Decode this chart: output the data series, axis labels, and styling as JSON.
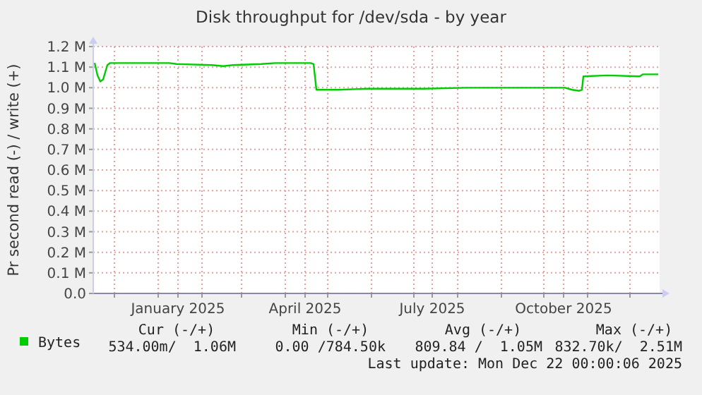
{
  "chart_data": {
    "type": "line",
    "title": "Disk throughput for /dev/sda - by year",
    "ylabel": "Pr second read (-) / write (+)",
    "x": [
      "2024-11-17",
      "2024-11-19",
      "2024-11-21",
      "2024-11-23",
      "2024-11-26",
      "2024-11-28",
      "2024-12-20",
      "2025-01-09",
      "2025-01-14",
      "2025-02-08",
      "2025-02-16",
      "2025-02-23",
      "2025-03-15",
      "2025-03-25",
      "2025-04-19",
      "2025-04-21",
      "2025-04-23",
      "2025-05-09",
      "2025-05-29",
      "2025-07-08",
      "2025-08-07",
      "2025-09-06",
      "2025-10-16",
      "2025-10-21",
      "2025-10-26",
      "2025-10-28",
      "2025-10-29",
      "2025-11-15",
      "2025-12-08",
      "2025-12-10",
      "2025-12-21"
    ],
    "series": [
      {
        "name": "Bytes",
        "color": "#00cc00",
        "values": [
          1120000,
          1060000,
          1030000,
          1040000,
          1110000,
          1120000,
          1120000,
          1120000,
          1115000,
          1110000,
          1105000,
          1110000,
          1115000,
          1120000,
          1120000,
          1115000,
          990000,
          990000,
          995000,
          995000,
          1000000,
          1000000,
          1000000,
          990000,
          985000,
          990000,
          1055000,
          1060000,
          1055000,
          1065000,
          1065000
        ]
      }
    ],
    "xlim": [
      "2024-11-16",
      "2025-12-22"
    ],
    "xticks": [
      {
        "value": "2024-12-01",
        "label": null
      },
      {
        "value": "2025-01-01",
        "label": null
      },
      {
        "value": "2025-01-15",
        "label": "January 2025"
      },
      {
        "value": "2025-02-01",
        "label": null
      },
      {
        "value": "2025-03-01",
        "label": null
      },
      {
        "value": "2025-04-01",
        "label": null
      },
      {
        "value": "2025-04-15",
        "label": "April 2025"
      },
      {
        "value": "2025-05-01",
        "label": null
      },
      {
        "value": "2025-06-01",
        "label": null
      },
      {
        "value": "2025-07-01",
        "label": null
      },
      {
        "value": "2025-07-14",
        "label": "July 2025"
      },
      {
        "value": "2025-08-01",
        "label": null
      },
      {
        "value": "2025-09-01",
        "label": null
      },
      {
        "value": "2025-10-01",
        "label": null
      },
      {
        "value": "2025-10-15",
        "label": "October 2025"
      },
      {
        "value": "2025-11-01",
        "label": null
      },
      {
        "value": "2025-12-01",
        "label": null
      }
    ],
    "ylim": [
      0,
      1200000
    ],
    "yticks": [
      {
        "value": 0,
        "label": "0.0"
      },
      {
        "value": 100000,
        "label": "0.1 M"
      },
      {
        "value": 200000,
        "label": "0.2 M"
      },
      {
        "value": 300000,
        "label": "0.3 M"
      },
      {
        "value": 400000,
        "label": "0.4 M"
      },
      {
        "value": 500000,
        "label": "0.5 M"
      },
      {
        "value": 600000,
        "label": "0.6 M"
      },
      {
        "value": 700000,
        "label": "0.7 M"
      },
      {
        "value": 800000,
        "label": "0.8 M"
      },
      {
        "value": 900000,
        "label": "0.9 M"
      },
      {
        "value": 1000000,
        "label": "1.0 M"
      },
      {
        "value": 1100000,
        "label": "1.1 M"
      },
      {
        "value": 1200000,
        "label": "1.2 M"
      }
    ],
    "grid": true,
    "legend": "bottom left",
    "marker": "none",
    "line_style": "solid",
    "annotations": [
      "Cur (-/+)",
      "Min (-/+)",
      "Avg (-/+)",
      "Max (-/+)",
      "534.00m/  1.06M",
      "0.00 /784.50k",
      "809.84 /  1.05M",
      "832.70k/  2.51M",
      "Last update: Mon Dec 22 00:00:06 2025"
    ]
  }
}
